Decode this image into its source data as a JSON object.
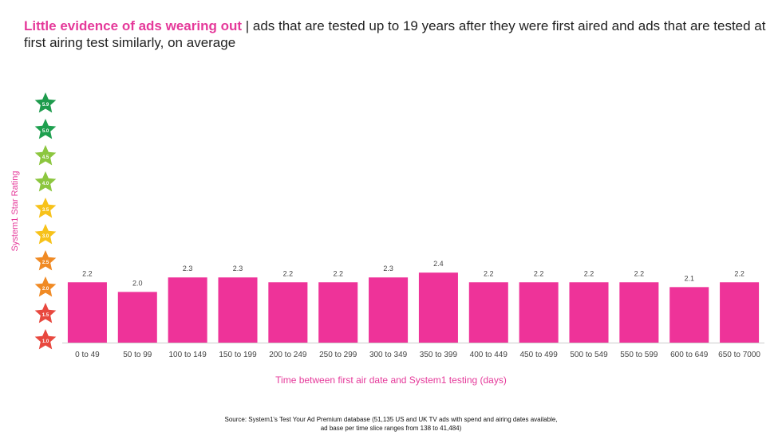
{
  "title": {
    "highlight": "Little evidence of ads wearing out",
    "separator": " | ",
    "rest": "ads that are tested up to 19 years after they were first aired and ads that are tested at first airing test similarly, on average"
  },
  "source": {
    "line1": "Source: System1's Test Your Ad Premium database (51,135 US and UK TV ads with spend and airing dates available,",
    "line2": "ad base per time slice ranges from 138 to 41,484)"
  },
  "colors": {
    "bar": "#ee3399",
    "accent": "#e5399a",
    "label": "#444444",
    "axis": "#cccccc"
  },
  "star_scale": [
    {
      "label": "5.9",
      "color": "#1e9b4d"
    },
    {
      "label": "5.0",
      "color": "#1ea04f"
    },
    {
      "label": "4.5",
      "color": "#8cc63f"
    },
    {
      "label": "4.0",
      "color": "#8cc63f"
    },
    {
      "label": "3.5",
      "color": "#f7c21a"
    },
    {
      "label": "3.0",
      "color": "#f7c21a"
    },
    {
      "label": "2.5",
      "color": "#f08a24"
    },
    {
      "label": "2.0",
      "color": "#f08a24"
    },
    {
      "label": "1.5",
      "color": "#e8483f"
    },
    {
      "label": "1.0",
      "color": "#e8483f"
    }
  ],
  "chart_data": {
    "type": "bar",
    "title": "",
    "xlabel": "Time between first air date and System1 testing (days)",
    "ylabel": "System1 Star Rating",
    "categories": [
      "0 to 49",
      "50 to 99",
      "100 to 149",
      "150 to 199",
      "200 to 249",
      "250 to 299",
      "300 to 349",
      "350 to 399",
      "400 to 449",
      "450 to 499",
      "500 to 549",
      "550 to 599",
      "600 to 649",
      "650 to 7000"
    ],
    "values": [
      2.2,
      2.0,
      2.3,
      2.3,
      2.2,
      2.2,
      2.3,
      2.4,
      2.2,
      2.2,
      2.2,
      2.2,
      2.1,
      2.2
    ],
    "data_labels": [
      "2.2",
      "2.0",
      "2.3",
      "2.3",
      "2.2",
      "2.2",
      "2.3",
      "2.4",
      "2.2",
      "2.2",
      "2.2",
      "2.2",
      "2.1",
      "2.2"
    ],
    "ylim": [
      1,
      5.9
    ],
    "grid": false,
    "legend": "none"
  }
}
